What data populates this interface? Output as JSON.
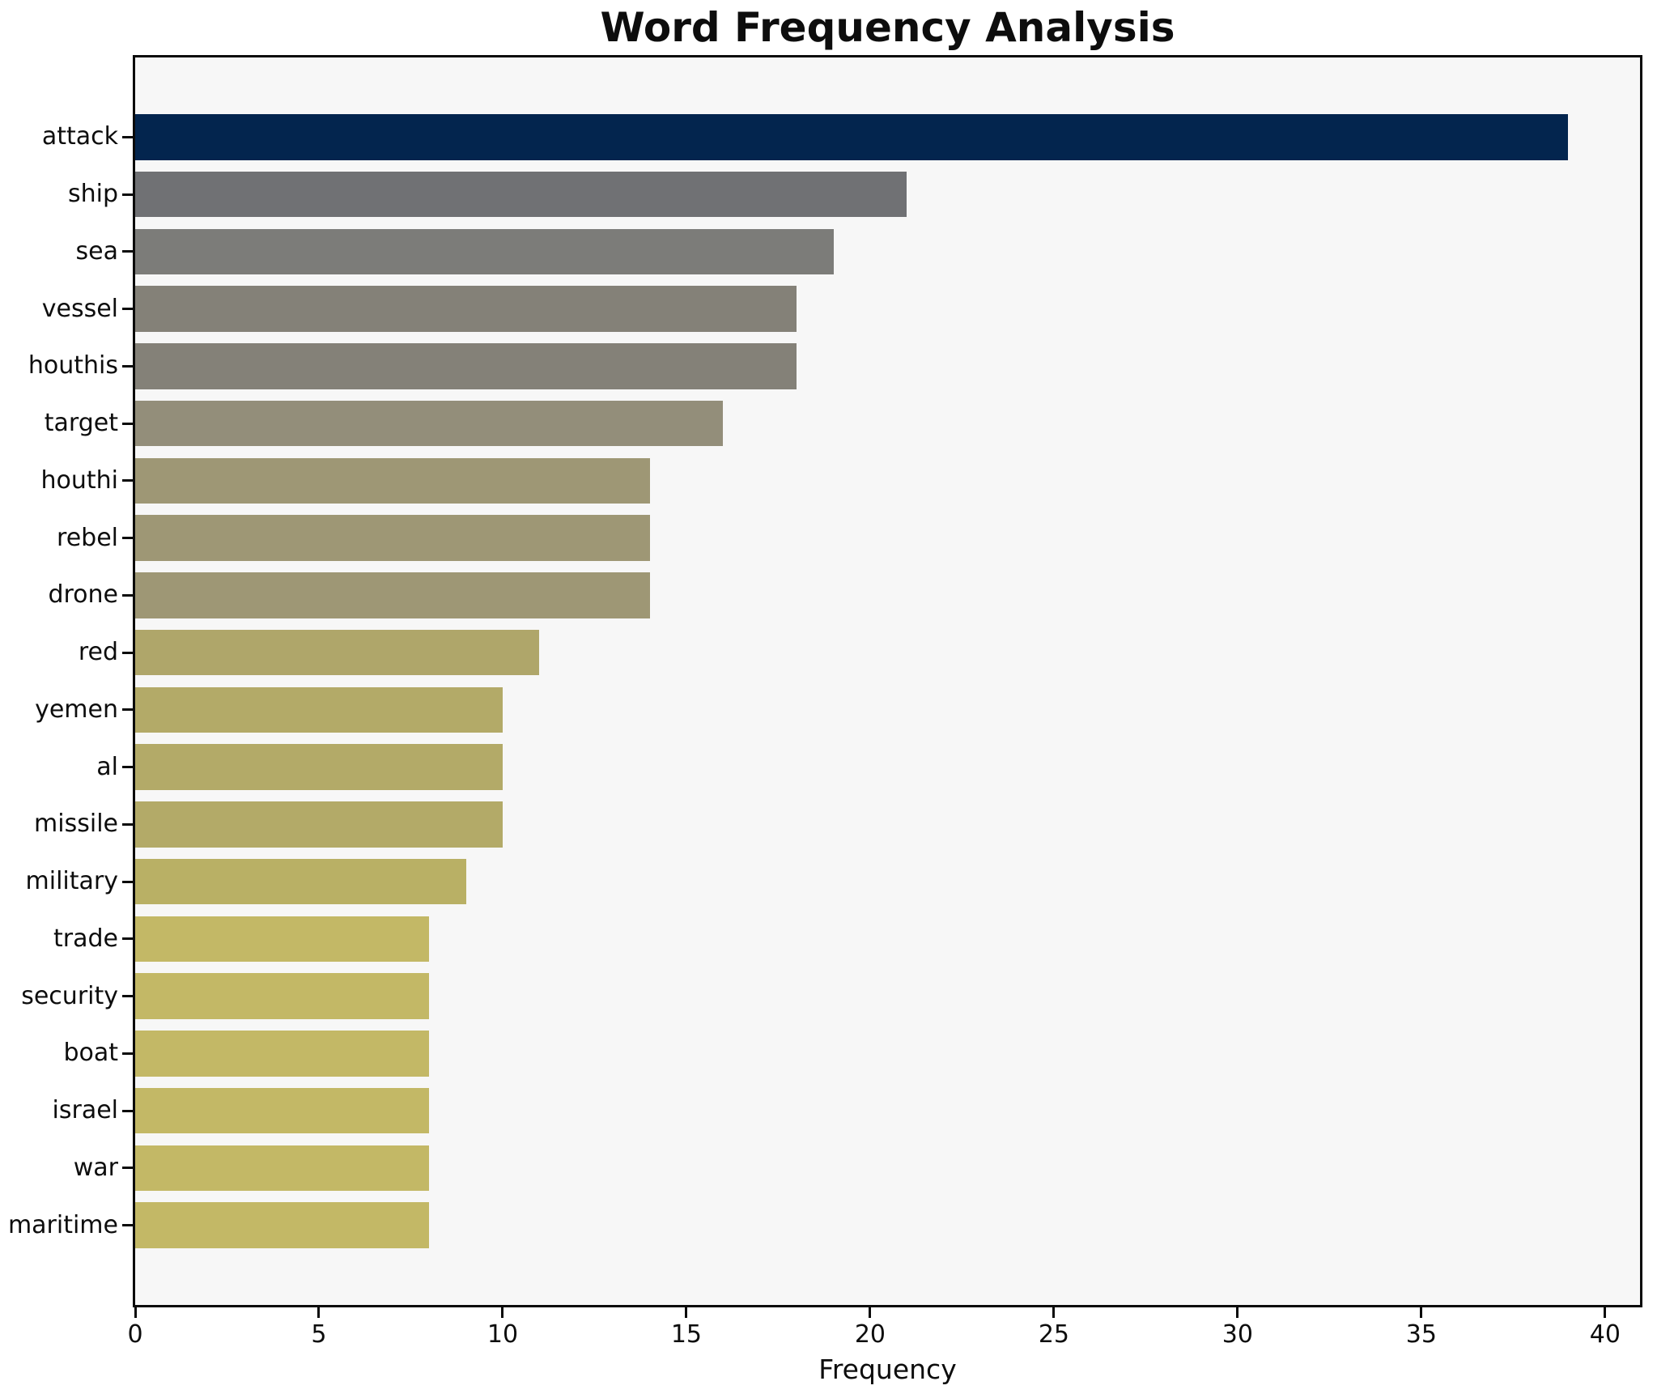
{
  "chart_data": {
    "type": "bar",
    "orientation": "horizontal",
    "title": "Word Frequency Analysis",
    "xlabel": "Frequency",
    "ylabel": "",
    "grid": false,
    "legend_position": "none",
    "xlim": [
      0,
      40.95
    ],
    "x_ticks": [
      0,
      5,
      10,
      15,
      20,
      25,
      30,
      35,
      40
    ],
    "categories": [
      "attack",
      "ship",
      "sea",
      "vessel",
      "houthis",
      "target",
      "houthi",
      "rebel",
      "drone",
      "red",
      "yemen",
      "al",
      "missile",
      "military",
      "trade",
      "security",
      "boat",
      "israel",
      "war",
      "maritime"
    ],
    "values": [
      39,
      21,
      19,
      18,
      18,
      16,
      14,
      14,
      14,
      11,
      10,
      10,
      10,
      9,
      8,
      8,
      8,
      8,
      8,
      8
    ],
    "bar_colors": [
      "#03254e",
      "#707174",
      "#7c7c79",
      "#848178",
      "#848178",
      "#938e7a",
      "#9e9775",
      "#9e9775",
      "#9e9775",
      "#afa66a",
      "#b3aa68",
      "#b3aa68",
      "#b3aa68",
      "#b9b065",
      "#c3b866",
      "#c3b866",
      "#c3b866",
      "#c3b866",
      "#c3b866",
      "#c3b866"
    ],
    "colors": {
      "figure_background": "#ffffff",
      "plot_background": "#f7f7f7",
      "spine": "#0a0a0a",
      "text": "#0d0d0d"
    }
  }
}
